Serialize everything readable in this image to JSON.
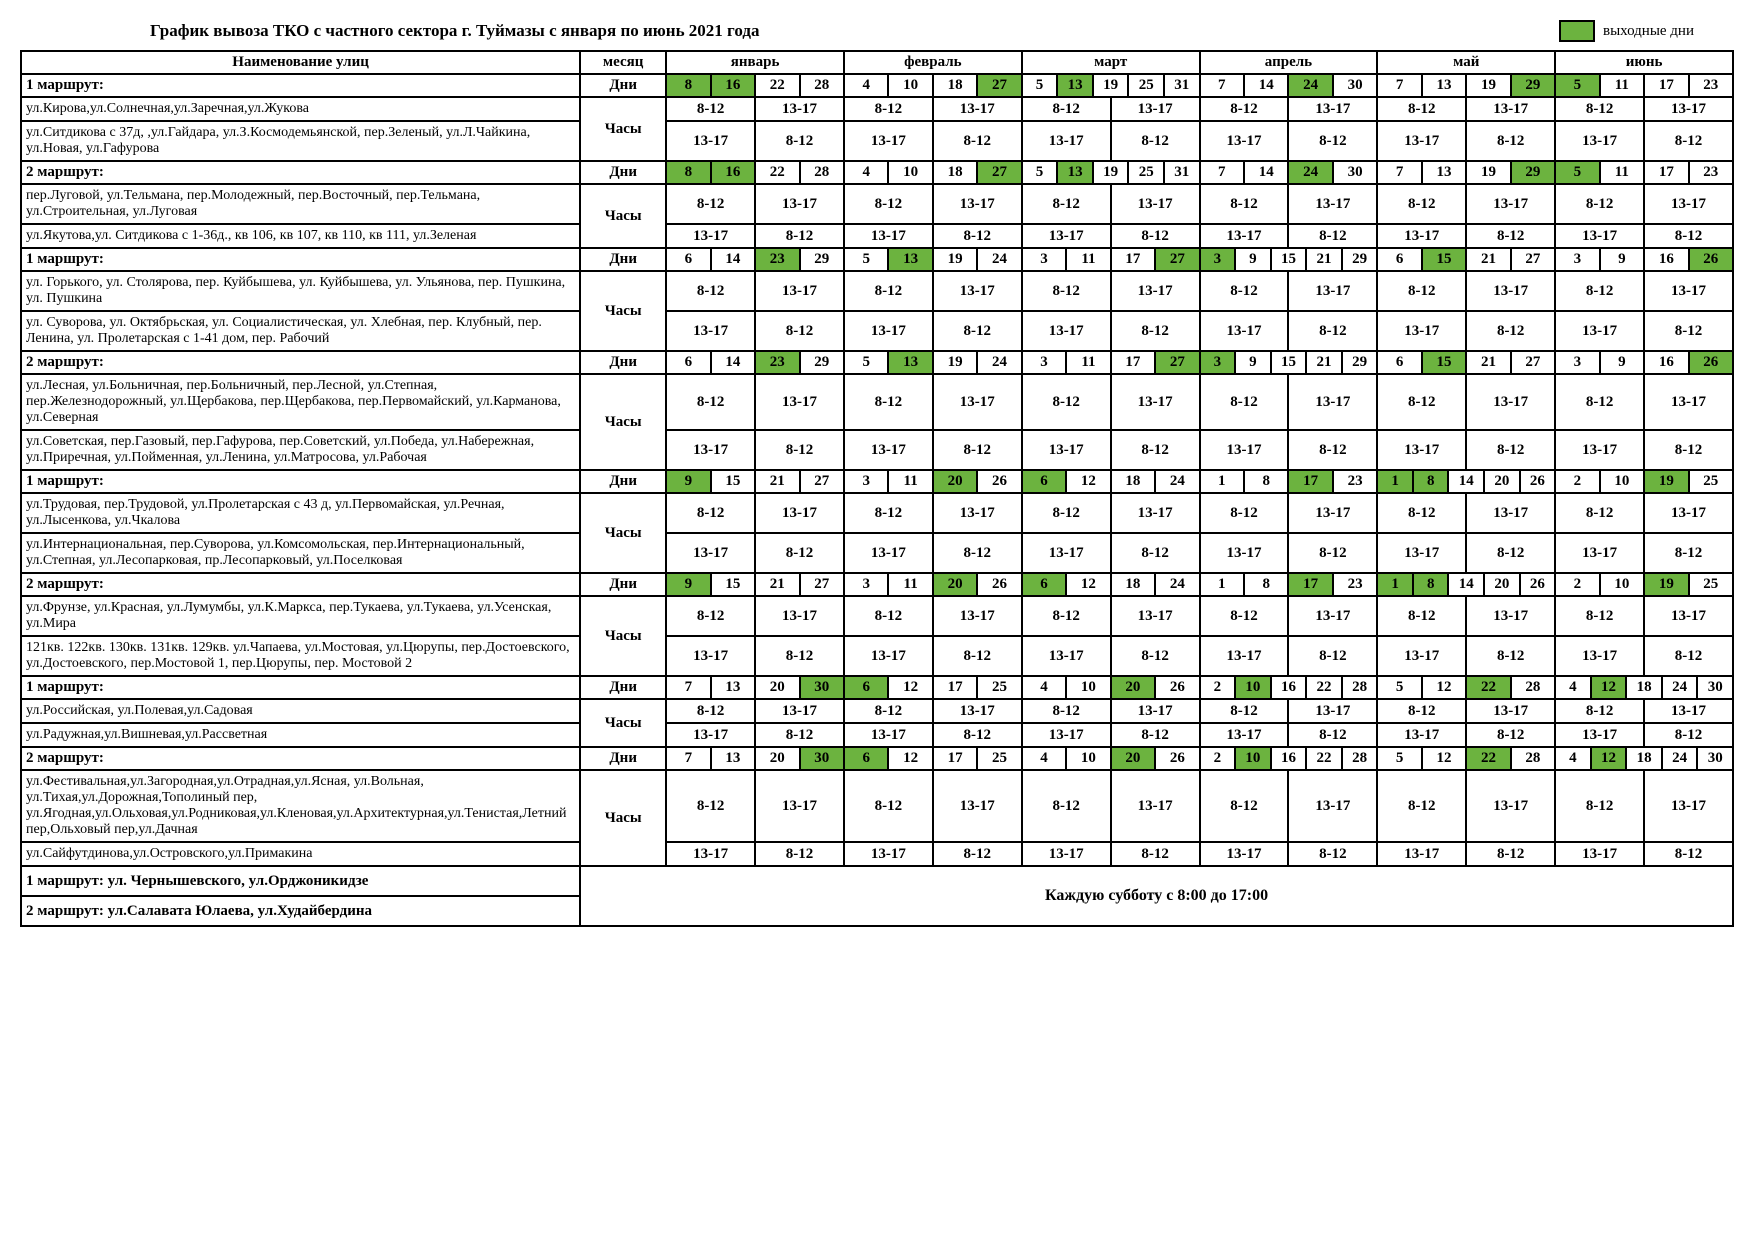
{
  "title": "График вывоза ТКО  с частного сектора г. Туймазы с января по июнь 2021 года",
  "legend": "выходные дни",
  "headers": {
    "name": "Наименование улиц",
    "month": "месяц",
    "months": [
      "январь",
      "февраль",
      "март",
      "апрель",
      "май",
      "июнь"
    ],
    "days_label": "Дни",
    "hours_label": "Часы"
  },
  "h812": "8-12",
  "h1317": "13-17",
  "footer_route1": "1 маршрут: ул. Чернышевского, ул.Орджоникидзе",
  "footer_route2": "2 маршрут:  ул.Салавата Юлаева, ул.Худайбердина",
  "footer_text": "Каждую субботу с 8:00 до 17:00",
  "blocks": [
    {
      "route": "1 маршрут:",
      "days": [
        [
          {
            "v": "8",
            "h": 1
          },
          {
            "v": "16",
            "h": 1
          },
          {
            "v": "22"
          },
          {
            "v": "28"
          }
        ],
        [
          {
            "v": "4"
          },
          {
            "v": "10"
          },
          {
            "v": "18"
          },
          {
            "v": "27",
            "h": 1
          }
        ],
        [
          {
            "v": "5"
          },
          {
            "v": "13",
            "h": 1
          },
          {
            "v": "19"
          },
          {
            "v": "25"
          },
          {
            "v": "31"
          }
        ],
        [
          {
            "v": "7"
          },
          {
            "v": "14"
          },
          {
            "v": "24",
            "h": 1
          },
          {
            "v": "30"
          }
        ],
        [
          {
            "v": "7"
          },
          {
            "v": "13"
          },
          {
            "v": "19"
          },
          {
            "v": "29",
            "h": 1
          }
        ],
        [
          {
            "v": "5",
            "h": 1
          },
          {
            "v": "11"
          },
          {
            "v": "17"
          },
          {
            "v": "23"
          }
        ]
      ],
      "row1": "ул.Кирова,ул.Солнечная,ул.Заречная,ул.Жукова",
      "row2": "ул.Ситдикова с 37д, ,ул.Гайдара, ул.З.Космодемьянской, пер.Зеленый, ул.Л.Чайкина, ул.Новая,  ул.Гафурова"
    },
    {
      "route": "2 маршрут:",
      "days": [
        [
          {
            "v": "8",
            "h": 1
          },
          {
            "v": "16",
            "h": 1
          },
          {
            "v": "22"
          },
          {
            "v": "28"
          }
        ],
        [
          {
            "v": "4"
          },
          {
            "v": "10"
          },
          {
            "v": "18"
          },
          {
            "v": "27",
            "h": 1
          }
        ],
        [
          {
            "v": "5"
          },
          {
            "v": "13",
            "h": 1
          },
          {
            "v": "19"
          },
          {
            "v": "25"
          },
          {
            "v": "31"
          }
        ],
        [
          {
            "v": "7"
          },
          {
            "v": "14"
          },
          {
            "v": "24",
            "h": 1
          },
          {
            "v": "30"
          }
        ],
        [
          {
            "v": "7"
          },
          {
            "v": "13"
          },
          {
            "v": "19"
          },
          {
            "v": "29",
            "h": 1
          }
        ],
        [
          {
            "v": "5",
            "h": 1
          },
          {
            "v": "11"
          },
          {
            "v": "17"
          },
          {
            "v": "23"
          }
        ]
      ],
      "row1": "пер.Луговой, ул.Тельмана, пер.Молодежный, пер.Восточный, пер.Тельмана, ул.Строительная, ул.Луговая",
      "row2": "ул.Якутова,ул. Ситдикова с 1-36д., кв 106, кв 107, кв 110, кв 111, ул.Зеленая"
    },
    {
      "route": "1 маршрут:",
      "days": [
        [
          {
            "v": "6"
          },
          {
            "v": "14"
          },
          {
            "v": "23",
            "h": 1
          },
          {
            "v": "29"
          }
        ],
        [
          {
            "v": "5"
          },
          {
            "v": "13",
            "h": 1
          },
          {
            "v": "19"
          },
          {
            "v": "24"
          }
        ],
        [
          {
            "v": "3"
          },
          {
            "v": "11"
          },
          {
            "v": "17"
          },
          {
            "v": "27",
            "h": 1
          }
        ],
        [
          {
            "v": "3",
            "h": 1
          },
          {
            "v": "9"
          },
          {
            "v": "15"
          },
          {
            "v": "21"
          },
          {
            "v": "29"
          }
        ],
        [
          {
            "v": "6"
          },
          {
            "v": "15",
            "h": 1
          },
          {
            "v": "21"
          },
          {
            "v": "27"
          }
        ],
        [
          {
            "v": "3"
          },
          {
            "v": "9"
          },
          {
            "v": "16"
          },
          {
            "v": "26",
            "h": 1
          }
        ]
      ],
      "row1": "ул. Горького, ул. Столярова,  пер. Куйбышева, ул. Куйбышева, ул. Ульянова, пер. Пушкина,  ул. Пушкина",
      "row2": "ул. Суворова, ул. Октябрьская, ул. Социалистическая, ул. Хлебная, пер. Клубный, пер. Ленина, ул. Пролетарская с 1-41 дом, пер. Рабочий"
    },
    {
      "route": "2 маршрут:",
      "days": [
        [
          {
            "v": "6"
          },
          {
            "v": "14"
          },
          {
            "v": "23",
            "h": 1
          },
          {
            "v": "29"
          }
        ],
        [
          {
            "v": "5"
          },
          {
            "v": "13",
            "h": 1
          },
          {
            "v": "19"
          },
          {
            "v": "24"
          }
        ],
        [
          {
            "v": "3"
          },
          {
            "v": "11"
          },
          {
            "v": "17"
          },
          {
            "v": "27",
            "h": 1
          }
        ],
        [
          {
            "v": "3",
            "h": 1
          },
          {
            "v": "9"
          },
          {
            "v": "15"
          },
          {
            "v": "21"
          },
          {
            "v": "29"
          }
        ],
        [
          {
            "v": "6"
          },
          {
            "v": "15",
            "h": 1
          },
          {
            "v": "21"
          },
          {
            "v": "27"
          }
        ],
        [
          {
            "v": "3"
          },
          {
            "v": "9"
          },
          {
            "v": "16"
          },
          {
            "v": "26",
            "h": 1
          }
        ]
      ],
      "row1": " ул.Лесная, ул.Больничная, пер.Больничный, пер.Лесной, ул.Степная, пер.Железнодорожный, ул.Щербакова, пер.Щербакова, пер.Первомайский, ул.Карманова, ул.Северная",
      "row2": "ул.Советская, пер.Газовый, пер.Гафурова, пер.Советский, ул.Победа, ул.Набережная, ул.Приречная, ул.Пойменная, ул.Ленина, ул.Матросова, ул.Рабочая"
    },
    {
      "route": "1 маршрут:",
      "days": [
        [
          {
            "v": "9",
            "h": 1
          },
          {
            "v": "15"
          },
          {
            "v": "21"
          },
          {
            "v": "27"
          }
        ],
        [
          {
            "v": "3"
          },
          {
            "v": "11"
          },
          {
            "v": "20",
            "h": 1
          },
          {
            "v": "26"
          }
        ],
        [
          {
            "v": "6",
            "h": 1
          },
          {
            "v": "12"
          },
          {
            "v": "18"
          },
          {
            "v": "24"
          }
        ],
        [
          {
            "v": "1"
          },
          {
            "v": "8"
          },
          {
            "v": "17",
            "h": 1
          },
          {
            "v": "23"
          }
        ],
        [
          {
            "v": "1",
            "h": 1
          },
          {
            "v": "8",
            "h": 1
          },
          {
            "v": "14"
          },
          {
            "v": "20"
          },
          {
            "v": "26"
          }
        ],
        [
          {
            "v": "2"
          },
          {
            "v": "10"
          },
          {
            "v": "19",
            "h": 1
          },
          {
            "v": "25"
          }
        ]
      ],
      "row1": " ул.Трудовая, пер.Трудовой, ул.Пролетарская с 43 д, ул.Первомайская, ул.Речная, ул.Лысенкова, ул.Чкалова",
      "row2": "ул.Интернациональная, пер.Суворова, ул.Комсомольская, пер.Интернациональный, ул.Степная, ул.Лесопарковая, пр.Лесопарковый, ул.Поселковая"
    },
    {
      "route": "2 маршрут:",
      "days": [
        [
          {
            "v": "9",
            "h": 1
          },
          {
            "v": "15"
          },
          {
            "v": "21"
          },
          {
            "v": "27"
          }
        ],
        [
          {
            "v": "3"
          },
          {
            "v": "11"
          },
          {
            "v": "20",
            "h": 1
          },
          {
            "v": "26"
          }
        ],
        [
          {
            "v": "6",
            "h": 1
          },
          {
            "v": "12"
          },
          {
            "v": "18"
          },
          {
            "v": "24"
          }
        ],
        [
          {
            "v": "1"
          },
          {
            "v": "8"
          },
          {
            "v": "17",
            "h": 1
          },
          {
            "v": "23"
          }
        ],
        [
          {
            "v": "1",
            "h": 1
          },
          {
            "v": "8",
            "h": 1
          },
          {
            "v": "14"
          },
          {
            "v": "20"
          },
          {
            "v": "26"
          }
        ],
        [
          {
            "v": "2"
          },
          {
            "v": "10"
          },
          {
            "v": "19",
            "h": 1
          },
          {
            "v": "25"
          }
        ]
      ],
      "row1": "ул.Фрунзе, ул.Красная, ул.Лумумбы, ул.К.Маркса, пер.Тукаева, ул.Тукаева, ул.Усенская, ул.Мира",
      "row2": "121кв. 122кв. 130кв. 131кв. 129кв. ул.Чапаева, ул.Мостовая, ул.Цюрупы, пер.Достоевского, ул.Достоевского, пер.Мостовой 1, пер.Цюрупы, пер. Мостовой 2"
    },
    {
      "route": "1 маршрут:",
      "days": [
        [
          {
            "v": "7"
          },
          {
            "v": "13"
          },
          {
            "v": "20"
          },
          {
            "v": "30",
            "h": 1
          }
        ],
        [
          {
            "v": "6",
            "h": 1
          },
          {
            "v": "12"
          },
          {
            "v": "17"
          },
          {
            "v": "25"
          }
        ],
        [
          {
            "v": "4"
          },
          {
            "v": "10"
          },
          {
            "v": "20",
            "h": 1
          },
          {
            "v": "26"
          }
        ],
        [
          {
            "v": "2"
          },
          {
            "v": "10",
            "h": 1
          },
          {
            "v": "16"
          },
          {
            "v": "22"
          },
          {
            "v": "28"
          }
        ],
        [
          {
            "v": "5"
          },
          {
            "v": "12"
          },
          {
            "v": "22",
            "h": 1
          },
          {
            "v": "28"
          }
        ],
        [
          {
            "v": "4"
          },
          {
            "v": "12",
            "h": 1
          },
          {
            "v": "18"
          },
          {
            "v": "24"
          },
          {
            "v": "30"
          }
        ]
      ],
      "row1": "ул.Российская, ул.Полевая,ул.Садовая",
      "row2": "ул.Радужная,ул.Вишневая,ул.Рассветная"
    },
    {
      "route": "2 маршрут:",
      "days": [
        [
          {
            "v": "7"
          },
          {
            "v": "13"
          },
          {
            "v": "20"
          },
          {
            "v": "30",
            "h": 1
          }
        ],
        [
          {
            "v": "6",
            "h": 1
          },
          {
            "v": "12"
          },
          {
            "v": "17"
          },
          {
            "v": "25"
          }
        ],
        [
          {
            "v": "4"
          },
          {
            "v": "10"
          },
          {
            "v": "20",
            "h": 1
          },
          {
            "v": "26"
          }
        ],
        [
          {
            "v": "2"
          },
          {
            "v": "10",
            "h": 1
          },
          {
            "v": "16"
          },
          {
            "v": "22"
          },
          {
            "v": "28"
          }
        ],
        [
          {
            "v": "5"
          },
          {
            "v": "12"
          },
          {
            "v": "22",
            "h": 1
          },
          {
            "v": "28"
          }
        ],
        [
          {
            "v": "4"
          },
          {
            "v": "12",
            "h": 1
          },
          {
            "v": "18"
          },
          {
            "v": "24"
          },
          {
            "v": "30"
          }
        ]
      ],
      "row1": "ул.Фестивальная,ул.Загородная,ул.Отрадная,ул.Ясная, ул.Вольная, ул.Тихая,ул.Дорожная,Тополиный пер, ул.Ягодная,ул.Ольховая,ул.Родниковая,ул.Кленовая,ул.Архитектурная,ул.Тенистая,Летний пер,Ольховый пер,ул.Дачная",
      "row2": "ул.Сайфутдинова,ул.Островского,ул.Примакина"
    }
  ]
}
